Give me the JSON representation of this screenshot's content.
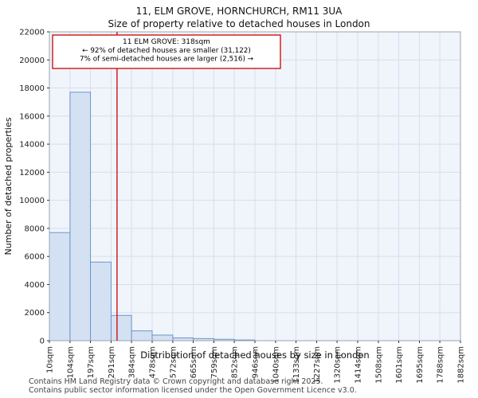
{
  "title": "11, ELM GROVE, HORNCHURCH, RM11 3UA",
  "subtitle": "Size of property relative to detached houses in London",
  "annotation": {
    "line1": "11 ELM GROVE: 318sqm",
    "line2": "← 92% of detached houses are smaller (31,122)",
    "line3": "7% of semi-detached houses are larger (2,516) →"
  },
  "footer": {
    "line1": "Contains HM Land Registry data © Crown copyright and database right 2025.",
    "line2": "Contains public sector information licensed under the Open Government Licence v3.0."
  },
  "chart_data": {
    "type": "bar",
    "title": "11, ELM GROVE, HORNCHURCH, RM11 3UA — Size of property relative to detached houses in London",
    "xlabel": "Distribution of detached houses by size in London",
    "ylabel": "Number of detached properties",
    "bin_edges_sqm": [
      10,
      104,
      197,
      291,
      384,
      478,
      572,
      665,
      759,
      852,
      946,
      1040,
      1133,
      1227,
      1320,
      1414,
      1508,
      1601,
      1695,
      1788,
      1882
    ],
    "categories": [
      "10sqm",
      "104sqm",
      "197sqm",
      "291sqm",
      "384sqm",
      "478sqm",
      "572sqm",
      "665sqm",
      "759sqm",
      "852sqm",
      "946sqm",
      "1040sqm",
      "1133sqm",
      "1227sqm",
      "1320sqm",
      "1414sqm",
      "1508sqm",
      "1601sqm",
      "1695sqm",
      "1788sqm",
      "1882sqm"
    ],
    "values": [
      7700,
      17700,
      5600,
      1800,
      700,
      400,
      200,
      150,
      100,
      50,
      0,
      0,
      0,
      0,
      0,
      0,
      0,
      0,
      0,
      0
    ],
    "ylim": [
      0,
      22000
    ],
    "ytick_step": 2000,
    "grid": true,
    "legend": false,
    "marker": {
      "value_sqm": 318,
      "color": "#cc0000"
    },
    "colors": {
      "bar_fill": "#d3e1f3",
      "bar_stroke": "#6b96c8",
      "grid": "#d7deed",
      "plot_bg": "#f0f4fb",
      "plot_border": "#9aa4b5",
      "marker": "#cc0000"
    }
  }
}
